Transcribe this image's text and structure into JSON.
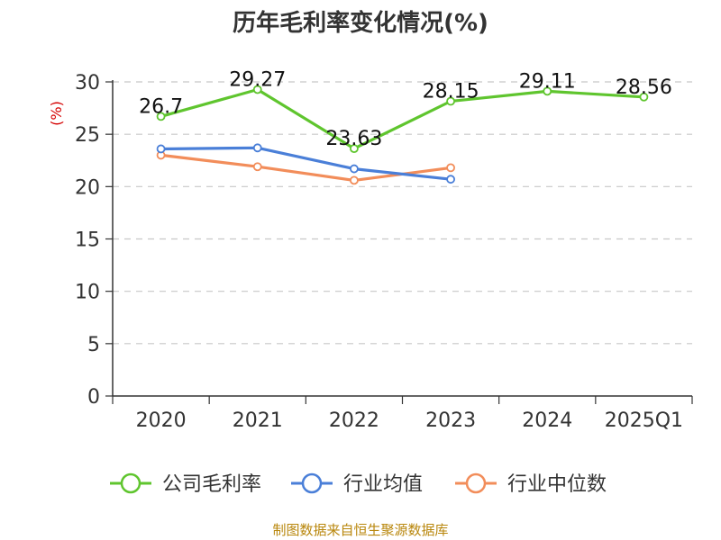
{
  "chart_data": {
    "type": "line",
    "title": "历年毛利率变化情况(%)",
    "ylabel": "(%)",
    "categories": [
      "2020",
      "2021",
      "2022",
      "2023",
      "2024",
      "2025Q1"
    ],
    "ylim": [
      0,
      30
    ],
    "yticks": [
      "0",
      "5",
      "10",
      "15",
      "20",
      "25",
      "30"
    ],
    "grid": true,
    "legend_position": "bottom",
    "series": [
      {
        "name": "公司毛利率",
        "color": "#5fc52e",
        "values": [
          26.7,
          29.27,
          23.63,
          28.15,
          29.11,
          28.56
        ],
        "labels": [
          "26.7",
          "29.27",
          "23.63",
          "28.15",
          "29.11",
          "28.56"
        ]
      },
      {
        "name": "行业均值",
        "color": "#4a7fd8",
        "values": [
          23.6,
          23.7,
          21.7,
          20.7,
          null,
          null
        ]
      },
      {
        "name": "行业中位数",
        "color": "#f28d5a",
        "values": [
          23.0,
          21.9,
          20.6,
          21.8,
          null,
          null
        ]
      }
    ]
  },
  "source": "制图数据来自恒生聚源数据库"
}
